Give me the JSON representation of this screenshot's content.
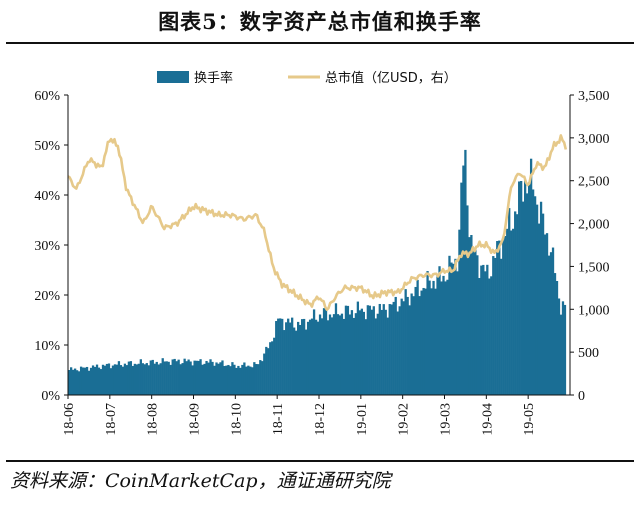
{
  "title": "图表5：数字资产总市值和换手率",
  "source": "资料来源：CoinMarketCap，通证通研究院",
  "chart_data": {
    "type": "bar+line",
    "legend": {
      "placement": "top",
      "items": [
        {
          "name": "换手率",
          "kind": "bar",
          "color": "#1a6e95"
        },
        {
          "name": "总市值（亿USD，右）",
          "kind": "line",
          "color": "#e6c98a"
        }
      ]
    },
    "x_ticks": [
      "18-06",
      "18-07",
      "18-08",
      "18-09",
      "18-10",
      "18-11",
      "18-12",
      "19-01",
      "19-02",
      "19-03",
      "19-04",
      "19-05"
    ],
    "y_left": {
      "label": "",
      "ticks": [
        "0%",
        "10%",
        "20%",
        "30%",
        "40%",
        "50%",
        "60%"
      ],
      "range": [
        0,
        60
      ],
      "unit": "%"
    },
    "y_right": {
      "label": "",
      "ticks": [
        "0",
        "500",
        "1,000",
        "1,500",
        "2,000",
        "2,500",
        "3,000",
        "3,500"
      ],
      "range": [
        0,
        3500
      ]
    },
    "grid": false,
    "turnover_keypoints": [
      [
        0,
        5
      ],
      [
        0.5,
        5.5
      ],
      [
        1,
        6
      ],
      [
        1.5,
        6.3
      ],
      [
        2,
        6.5
      ],
      [
        2.5,
        6.8
      ],
      [
        3,
        6.7
      ],
      [
        3.5,
        6.5
      ],
      [
        4,
        5.8
      ],
      [
        4.5,
        6
      ],
      [
        4.8,
        10
      ],
      [
        5,
        15
      ],
      [
        5.5,
        14
      ],
      [
        6,
        16
      ],
      [
        6.5,
        16.5
      ],
      [
        7,
        17
      ],
      [
        7.5,
        17
      ],
      [
        8,
        19
      ],
      [
        8.5,
        22
      ],
      [
        9,
        24
      ],
      [
        9.3,
        28
      ],
      [
        9.45,
        50
      ],
      [
        9.6,
        30
      ],
      [
        9.9,
        25
      ],
      [
        10,
        24
      ],
      [
        10.3,
        30
      ],
      [
        10.6,
        35
      ],
      [
        10.9,
        43
      ],
      [
        11.1,
        42
      ],
      [
        11.3,
        35
      ],
      [
        11.5,
        30
      ],
      [
        11.75,
        18
      ],
      [
        11.9,
        17
      ]
    ],
    "market_cap_keypoints": [
      [
        0,
        2550
      ],
      [
        0.2,
        2400
      ],
      [
        0.5,
        2750
      ],
      [
        0.8,
        2650
      ],
      [
        1,
        3000
      ],
      [
        1.2,
        2900
      ],
      [
        1.4,
        2400
      ],
      [
        1.6,
        2200
      ],
      [
        1.8,
        2000
      ],
      [
        2,
        2200
      ],
      [
        2.3,
        1950
      ],
      [
        2.6,
        2000
      ],
      [
        2.8,
        2100
      ],
      [
        3,
        2200
      ],
      [
        3.3,
        2150
      ],
      [
        3.6,
        2100
      ],
      [
        3.9,
        2100
      ],
      [
        4.2,
        2050
      ],
      [
        4.5,
        2100
      ],
      [
        4.7,
        1900
      ],
      [
        4.9,
        1500
      ],
      [
        5.1,
        1300
      ],
      [
        5.5,
        1150
      ],
      [
        5.8,
        1050
      ],
      [
        6,
        1150
      ],
      [
        6.2,
        1000
      ],
      [
        6.4,
        1150
      ],
      [
        6.6,
        1250
      ],
      [
        7,
        1250
      ],
      [
        7.3,
        1150
      ],
      [
        7.6,
        1200
      ],
      [
        7.9,
        1200
      ],
      [
        8.2,
        1350
      ],
      [
        8.5,
        1400
      ],
      [
        8.8,
        1400
      ],
      [
        9,
        1450
      ],
      [
        9.2,
        1450
      ],
      [
        9.4,
        1650
      ],
      [
        9.6,
        1650
      ],
      [
        9.8,
        1750
      ],
      [
        10,
        1750
      ],
      [
        10.2,
        1650
      ],
      [
        10.4,
        1800
      ],
      [
        10.6,
        2450
      ],
      [
        10.8,
        2600
      ],
      [
        11,
        2450
      ],
      [
        11.2,
        2700
      ],
      [
        11.4,
        2650
      ],
      [
        11.6,
        2900
      ],
      [
        11.8,
        3000
      ],
      [
        11.9,
        2900
      ]
    ]
  }
}
